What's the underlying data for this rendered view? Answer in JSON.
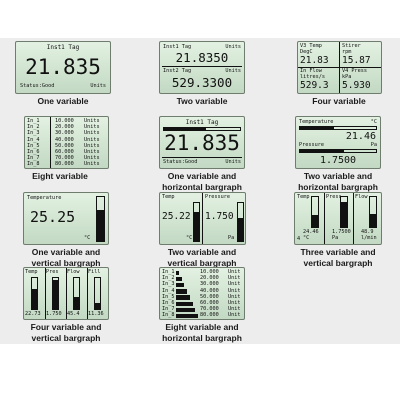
{
  "p1": {
    "title": "Inst1 Tag",
    "value": "21.835",
    "status": "Status:Good",
    "units": "Units",
    "caption": "One variable"
  },
  "p2": {
    "l1_tag": "Inst1 Tag",
    "l1_units": "Units",
    "l1_value": "21.8350",
    "l2_tag": "Inst2 Tag",
    "l2_units": "Units",
    "l2_value": "529.3300",
    "caption": "Two variable"
  },
  "p3": {
    "tl_name": "V3 Temp",
    "tl_unit": "DegC",
    "tl_value": "21.83",
    "tr_name": "Stirer",
    "tr_unit": "rpm",
    "tr_value": "15.87",
    "bl_name": "In Flow",
    "bl_unit": "litres/s",
    "bl_value": "529.3",
    "br_name": "V4 Press",
    "br_unit": "kPa",
    "br_value": "5.930",
    "caption": "Four variable"
  },
  "p4": {
    "rows": [
      {
        "tag": "In_1",
        "value": "10.000",
        "unit": "Units"
      },
      {
        "tag": "In_2",
        "value": "20.000",
        "unit": "Units"
      },
      {
        "tag": "In_3",
        "value": "30.000",
        "unit": "Units"
      },
      {
        "tag": "In_4",
        "value": "40.000",
        "unit": "Units"
      },
      {
        "tag": "In_5",
        "value": "50.000",
        "unit": "Units"
      },
      {
        "tag": "In_6",
        "value": "60.000",
        "unit": "Units"
      },
      {
        "tag": "In_7",
        "value": "70.000",
        "unit": "Units"
      },
      {
        "tag": "In_8",
        "value": "80.000",
        "unit": "Units"
      }
    ],
    "caption": "Eight variable"
  },
  "p5": {
    "title": "Inst1 Tag",
    "value": "21.835",
    "status": "Status:Good",
    "units": "Units",
    "bar_level": 0.55,
    "caption1": "One variable and",
    "caption2": "horizontal bargraph"
  },
  "p6": {
    "v1_name": "Temperature",
    "v1_unit": "°C",
    "v1_value": "21.46",
    "v1_level": 0.45,
    "v2_name": "Pressure",
    "v2_unit": "Pa",
    "v2_value": "1.7500",
    "v2_level": 0.58,
    "caption1": "Two variable and",
    "caption2": "horizontal bargraph"
  },
  "p7": {
    "name": "Temperature",
    "value": "25.25",
    "unit": "°C",
    "level": 0.7,
    "caption1": "One variable and",
    "caption2": "vertical bargraph"
  },
  "p8": {
    "v1_name": "Temp",
    "v1_value": "25.22",
    "v1_unit": "°C",
    "v1_level": 0.75,
    "v2_name": "Pressure",
    "v2_value": "1.750",
    "v2_unit": "Pa",
    "v2_level": 0.6,
    "caption1": "Two variable and",
    "caption2": "vertical bargraph"
  },
  "p9": {
    "cols": [
      {
        "name": "Temp",
        "value": "24.46",
        "unit": "°C",
        "level": 0.4
      },
      {
        "name": "Press",
        "value": "1.7500",
        "unit": "Pa",
        "level": 0.8
      },
      {
        "name": "Flow",
        "value": "48.9",
        "unit": "l/min",
        "level": 0.45
      }
    ],
    "axis_min": "4",
    "caption1": "Three variable and",
    "caption2": "vertical bargraph"
  },
  "p10": {
    "cols": [
      {
        "name": "Temp",
        "value": "22.73",
        "level": 0.65
      },
      {
        "name": "Pres",
        "value": "1.750",
        "level": 0.9
      },
      {
        "name": "Flow",
        "value": "45.4",
        "level": 0.4
      },
      {
        "name": "Fill",
        "value": "11.36",
        "level": 0.2
      }
    ],
    "caption1": "Four variable and",
    "caption2": "vertical bargraph"
  },
  "p11": {
    "rows": [
      {
        "tag": "In_1",
        "value": "10.000",
        "unit": "Unit",
        "level": 0.125
      },
      {
        "tag": "In_2",
        "value": "20.000",
        "unit": "Unit",
        "level": 0.25
      },
      {
        "tag": "In_3",
        "value": "30.000",
        "unit": "Unit",
        "level": 0.375
      },
      {
        "tag": "In_4",
        "value": "40.000",
        "unit": "Unit",
        "level": 0.5
      },
      {
        "tag": "In_5",
        "value": "50.000",
        "unit": "Unit",
        "level": 0.625
      },
      {
        "tag": "In_6",
        "value": "60.000",
        "unit": "Unit",
        "level": 0.75
      },
      {
        "tag": "In_7",
        "value": "70.000",
        "unit": "Unit",
        "level": 0.875
      },
      {
        "tag": "In_8",
        "value": "80.000",
        "unit": "Unit",
        "level": 1.0
      }
    ],
    "caption1": "Eight variable and",
    "caption2": "horizontal bargraph"
  }
}
